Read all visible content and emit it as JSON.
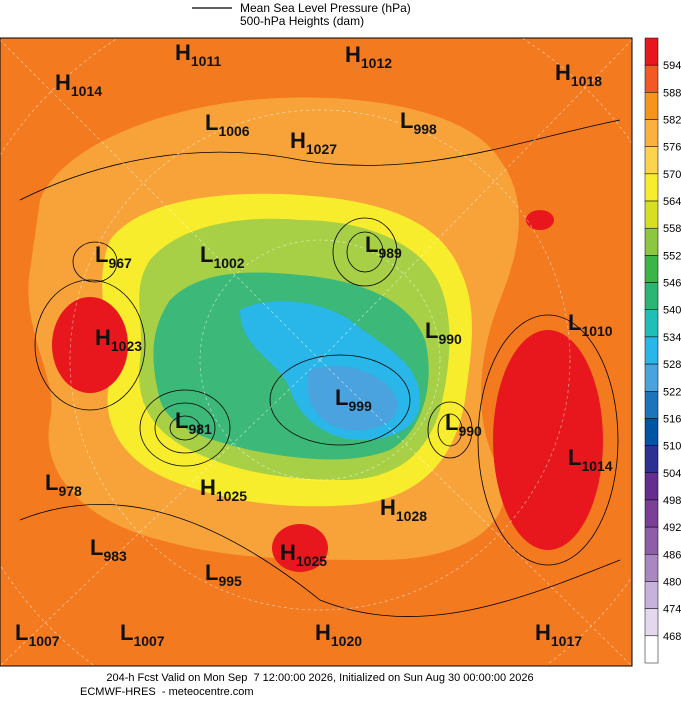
{
  "legend": {
    "line_label": "Mean Sea Level Pressure (hPa)",
    "fill_label": "500-hPa Heights (dam)"
  },
  "colorbar": {
    "ticks": [
      594,
      588,
      582,
      576,
      570,
      564,
      558,
      552,
      546,
      540,
      534,
      528,
      522,
      516,
      510,
      504,
      498,
      492,
      486,
      480,
      474,
      468
    ],
    "colors": [
      "#e8171d",
      "#f15a22",
      "#f7941d",
      "#fbb040",
      "#fcd34d",
      "#f8ed2c",
      "#d7df23",
      "#8dc63f",
      "#39b54a",
      "#2bb673",
      "#1fbfb8",
      "#29b6e8",
      "#4aa3df",
      "#1c75bc",
      "#0054a6",
      "#2e3192",
      "#662d91",
      "#7b3f98",
      "#8e5ea8",
      "#a987c1",
      "#c6b2da",
      "#e3d8ee",
      "#ffffff"
    ]
  },
  "centers": [
    {
      "type": "H",
      "pressure": 1011
    },
    {
      "type": "H",
      "pressure": 1012
    },
    {
      "type": "H",
      "pressure": 1014
    },
    {
      "type": "H",
      "pressure": 1018
    },
    {
      "type": "L",
      "pressure": 1006
    },
    {
      "type": "H",
      "pressure": 1027
    },
    {
      "type": "L",
      "pressure": 998
    },
    {
      "type": "L",
      "pressure": 967
    },
    {
      "type": "L",
      "pressure": 1002
    },
    {
      "type": "L",
      "pressure": 989
    },
    {
      "type": "H",
      "pressure": 1023
    },
    {
      "type": "L",
      "pressure": 1010
    },
    {
      "type": "L",
      "pressure": 990
    },
    {
      "type": "L",
      "pressure": 999
    },
    {
      "type": "L",
      "pressure": 981
    },
    {
      "type": "L",
      "pressure": 990
    },
    {
      "type": "L",
      "pressure": 1014
    },
    {
      "type": "L",
      "pressure": 978
    },
    {
      "type": "H",
      "pressure": 1025
    },
    {
      "type": "H",
      "pressure": 1028
    },
    {
      "type": "L",
      "pressure": 983
    },
    {
      "type": "H",
      "pressure": 1025
    },
    {
      "type": "L",
      "pressure": 995
    },
    {
      "type": "L",
      "pressure": 1007
    },
    {
      "type": "L",
      "pressure": 1007
    },
    {
      "type": "H",
      "pressure": 1020
    },
    {
      "type": "H",
      "pressure": 1017
    }
  ],
  "footer": {
    "line1": "204-h Fcst Valid on Mon Sep  7 12:00:00 2026, Initialized on Sun Aug 30 00:00:00 2026",
    "line2": "ECMWF-HRES  - meteocentre.com"
  }
}
